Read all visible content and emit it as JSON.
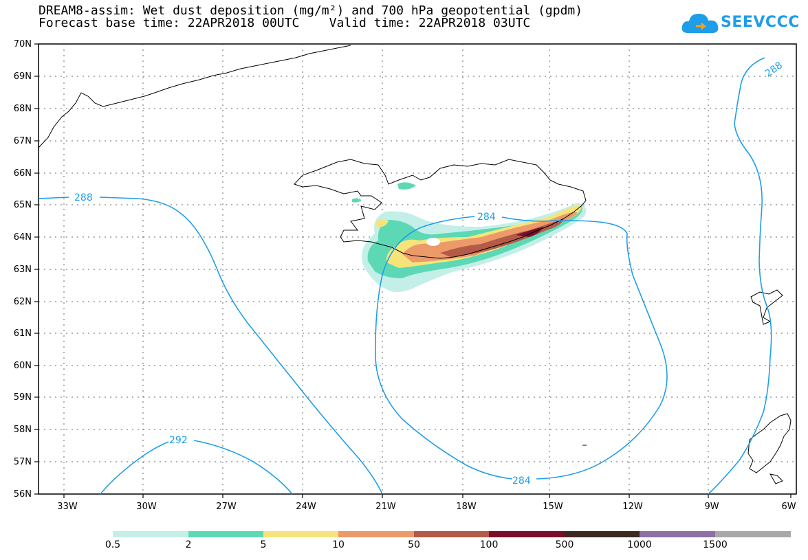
{
  "title_line1": "DREAM8-assim: Wet dust deposition (mg/m²) and 700 hPa geopotential (gpdm)",
  "title_line2": "Forecast base time: 22APR2018 00UTC    Valid time: 22APR2018 03UTC",
  "logo_text": "SEEVCCC",
  "lat_labels": [
    "70N",
    "69N",
    "68N",
    "67N",
    "66N",
    "65N",
    "64N",
    "63N",
    "62N",
    "61N",
    "60N",
    "59N",
    "58N",
    "57N",
    "56N"
  ],
  "lon_labels": [
    "33W",
    "30W",
    "27W",
    "24W",
    "21W",
    "18W",
    "15W",
    "12W",
    "9W",
    "6W"
  ],
  "contour_labels": [
    {
      "text": "288",
      "value": 288
    },
    {
      "text": "288",
      "value": 288
    },
    {
      "text": "284",
      "value": 284
    },
    {
      "text": "284",
      "value": 284
    },
    {
      "text": "292",
      "value": 292
    }
  ],
  "colorbar": {
    "labels": [
      "0.5",
      "2",
      "5",
      "10",
      "50",
      "100",
      "500",
      "1000",
      "1500"
    ],
    "colors": [
      "#c4efe9",
      "#5cd9b4",
      "#f6e47a",
      "#ec9a6a",
      "#b45a48",
      "#7a0f2a",
      "#3a2a20",
      "#8e6fa6",
      "#a8a8a8"
    ]
  },
  "colors": {
    "contour": "#1e9ee8",
    "coast": "#000000",
    "grid": "#555555"
  }
}
